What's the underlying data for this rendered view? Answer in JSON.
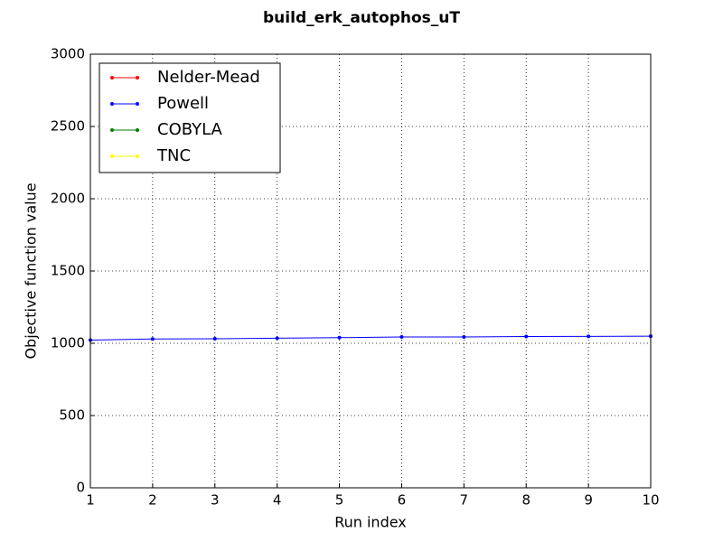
{
  "chart_data": {
    "type": "line",
    "title": "build_erk_autophos_uT",
    "xlabel": "Run index",
    "ylabel": "Objective function value",
    "x": [
      1,
      2,
      3,
      4,
      5,
      6,
      7,
      8,
      9,
      10
    ],
    "series": [
      {
        "name": "Nelder-Mead",
        "color": "#ff0000",
        "values": [
          null,
          null,
          null,
          null,
          null,
          null,
          null,
          null,
          null,
          null
        ]
      },
      {
        "name": "Powell",
        "color": "#0000ff",
        "values": [
          1022,
          1030,
          1031,
          1035,
          1039,
          1044,
          1044,
          1047,
          1048,
          1049
        ]
      },
      {
        "name": "COBYLA",
        "color": "#008000",
        "values": [
          null,
          null,
          null,
          null,
          null,
          null,
          null,
          null,
          null,
          null
        ]
      },
      {
        "name": "TNC",
        "color": "#ffff00",
        "values": [
          null,
          null,
          null,
          null,
          null,
          null,
          null,
          null,
          null,
          null
        ]
      }
    ],
    "xlim": [
      1,
      10
    ],
    "xticks": [
      1,
      2,
      3,
      4,
      5,
      6,
      7,
      8,
      9,
      10
    ],
    "ylim": [
      0,
      3000
    ],
    "yticks": [
      0,
      500,
      1000,
      1500,
      2000,
      2500,
      3000
    ],
    "grid": true,
    "legend": "upper left"
  }
}
